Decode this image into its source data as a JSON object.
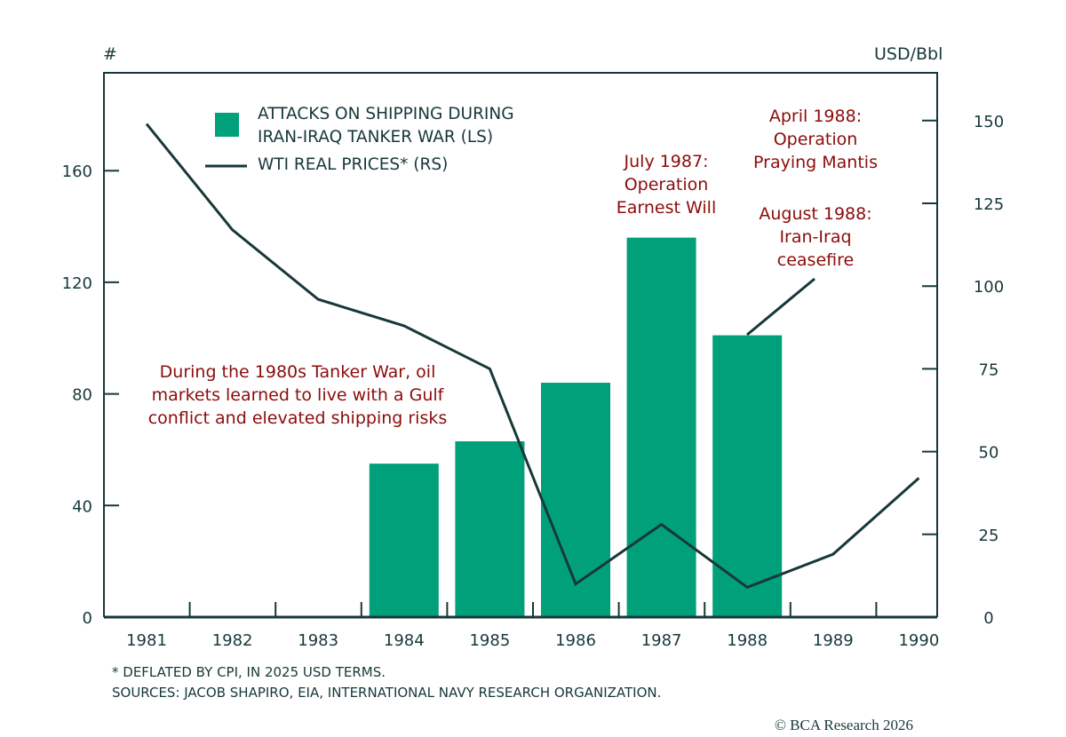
{
  "chart_data": {
    "type": "bar+line",
    "left_axis_label": "#",
    "right_axis_label": "USD/Bbl",
    "categories": [
      "1981",
      "1982",
      "1983",
      "1984",
      "1985",
      "1986",
      "1987",
      "1988",
      "1989",
      "1990"
    ],
    "left_ylim": [
      0,
      195
    ],
    "left_ticks": [
      0,
      40,
      80,
      120,
      160
    ],
    "right_ylim": [
      0,
      165
    ],
    "right_ticks": [
      0,
      25,
      50,
      75,
      100,
      125,
      150
    ],
    "series": [
      {
        "name": "ATTACKS ON SHIPPING DURING IRAN-IRAQ TANKER WAR (LS)",
        "type": "bar",
        "axis": "left",
        "color": "#00a07a",
        "values": [
          null,
          null,
          null,
          55,
          63,
          84,
          136,
          101,
          null,
          null
        ]
      },
      {
        "name": "WTI REAL PRICES* (RS)",
        "type": "line",
        "axis": "right",
        "color": "#17383a",
        "values": [
          149,
          117,
          96,
          88,
          75,
          10,
          28,
          9,
          19,
          42
        ]
      }
    ],
    "legend": {
      "placement": "top-left",
      "bar_label_line1": "ATTACKS ON SHIPPING DURING",
      "bar_label_line2": "IRAN-IRAQ TANKER WAR (LS)",
      "line_label": "WTI REAL PRICES* (RS)"
    },
    "annotations": {
      "summary": [
        "During the 1980s Tanker War, oil",
        "markets learned to live with a Gulf",
        "conflict and elevated shipping risks"
      ],
      "july1987": [
        "July 1987:",
        "Operation",
        "Earnest Will"
      ],
      "april1988": [
        "April 1988:",
        "Operation",
        "Praying Mantis"
      ],
      "august1988": [
        "August 1988:",
        "Iran-Iraq",
        "ceasefire"
      ]
    },
    "annotation_color": "#8b0c0c",
    "grid": false
  },
  "footnotes": {
    "deflated": "* DEFLATED BY CPI, IN 2025 USD TERMS.",
    "sources": "SOURCES: JACOB SHAPIRO, EIA, INTERNATIONAL NAVY RESEARCH ORGANIZATION.",
    "copyright": "© BCA Research 2026"
  }
}
